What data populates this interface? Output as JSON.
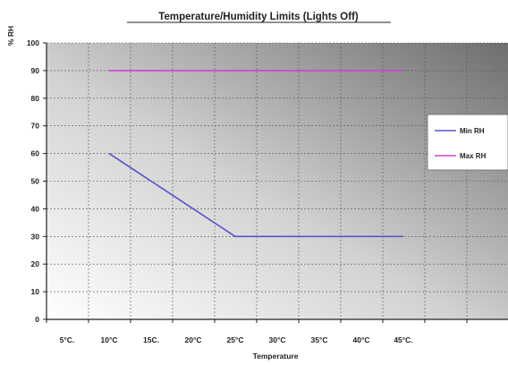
{
  "chart_data": {
    "type": "line",
    "title": "Temperature/Humidity Limits (Lights Off)",
    "xlabel": "Temperature",
    "ylabel": "% RH",
    "categories": [
      "5°C",
      "10°C",
      "15C",
      "20°C",
      "25°C",
      "30°C",
      "35°C",
      "40°C",
      "45°C",
      ""
    ],
    "x_tick_labels": [
      "5°C.",
      "10°C",
      "15C.",
      "20°C",
      "25°C",
      "30°C",
      "35°C",
      "40°C",
      "45°C."
    ],
    "ylim": [
      0,
      100
    ],
    "y_ticks": [
      0,
      10,
      20,
      30,
      40,
      50,
      60,
      70,
      80,
      90,
      100
    ],
    "grid": true,
    "legend_position": "right",
    "series": [
      {
        "name": "Min RH",
        "color": "#5555cc",
        "points": [
          {
            "x": "10°C",
            "y": 60
          },
          {
            "x": "25°C",
            "y": 30
          },
          {
            "x": "45°C",
            "y": 30
          }
        ]
      },
      {
        "name": "Max RH",
        "color": "#cc44cc",
        "points": [
          {
            "x": "10°C",
            "y": 90
          },
          {
            "x": "45°C",
            "y": 90
          }
        ]
      }
    ]
  }
}
